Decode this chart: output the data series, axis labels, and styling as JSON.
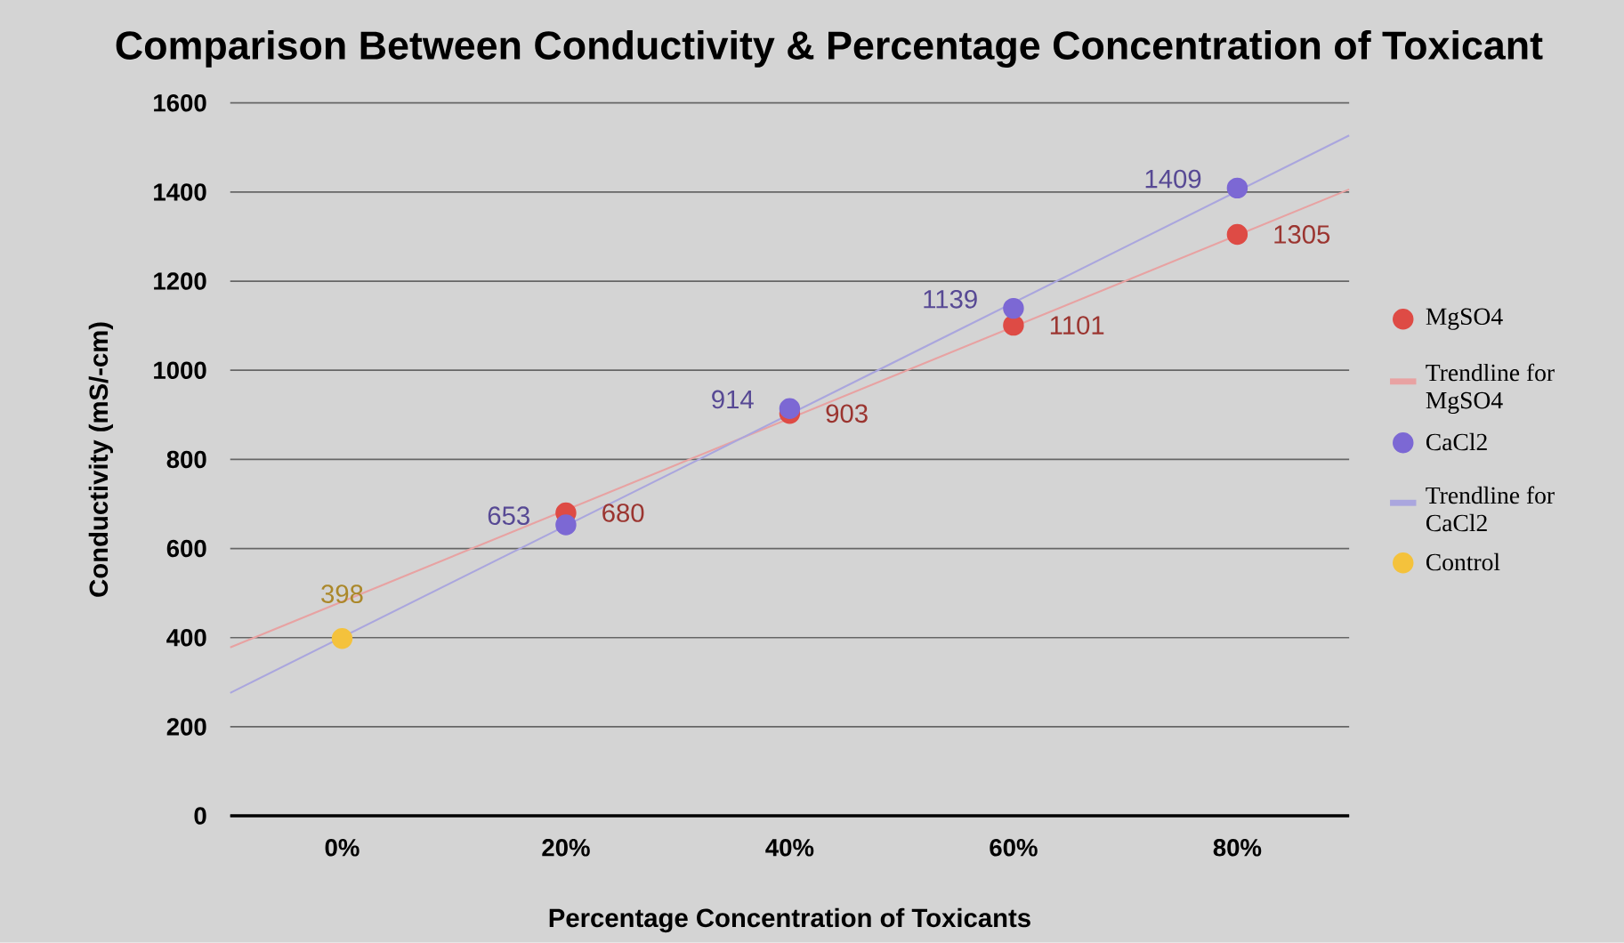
{
  "chart_data": {
    "type": "scatter",
    "title": "Comparison Between Conductivity & Percentage Concentration of Toxicant",
    "xlabel": "Percentage Concentration of Toxicants",
    "ylabel": "Conductivity (mS/-cm)",
    "xlim": [
      -10,
      90
    ],
    "ylim": [
      0,
      1600
    ],
    "xticks": [
      {
        "value": 0,
        "label": "0%"
      },
      {
        "value": 20,
        "label": "20%"
      },
      {
        "value": 40,
        "label": "40%"
      },
      {
        "value": 60,
        "label": "60%"
      },
      {
        "value": 80,
        "label": "80%"
      }
    ],
    "yticks": [
      0,
      200,
      400,
      600,
      800,
      1000,
      1200,
      1400,
      1600
    ],
    "grid": "y",
    "legend": "right",
    "marker": "circle",
    "series": [
      {
        "name": "MgSO4",
        "color": "#de4b45",
        "x": [
          20,
          40,
          60,
          80
        ],
        "values": [
          680,
          903,
          1101,
          1305
        ],
        "value_labels": [
          "680",
          "903",
          "1101",
          "1305"
        ]
      },
      {
        "name": "Trendline for MgSO4",
        "type": "line",
        "marker": "none",
        "color": "#e8a2a2",
        "x": [
          -10,
          90
        ],
        "values": [
          378,
          1406
        ]
      },
      {
        "name": "CaCl2",
        "color": "#7c68d4",
        "x": [
          20,
          40,
          60,
          80
        ],
        "values": [
          653,
          914,
          1139,
          1409
        ],
        "value_labels": [
          "653",
          "914",
          "1139",
          "1409"
        ]
      },
      {
        "name": "Trendline for CaCl2",
        "type": "line",
        "marker": "none",
        "color": "#aaa6de",
        "x": [
          -10,
          90
        ],
        "values": [
          276,
          1527
        ]
      },
      {
        "name": "Control",
        "color": "#f4c23c",
        "x": [
          0
        ],
        "values": [
          398
        ],
        "value_labels": [
          "398"
        ]
      }
    ]
  }
}
